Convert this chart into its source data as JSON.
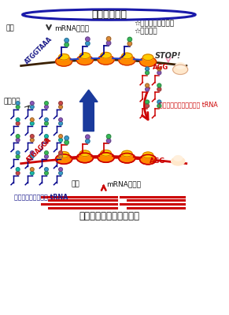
{
  "title_top": "ゲノム遺伝子",
  "title_bottom": "人工低頻度コドン遺伝子",
  "label_transcription1": "転写",
  "label_mrna1": "mRNAの合成",
  "label_transcription2": "転写",
  "label_mrna2": "mRNAの合成",
  "label_amino": "アミノ酸",
  "label_large_trna": "大量の通常コドン用 tRNA",
  "label_small_trna": "わずかな低頻度コドン用 tRNA",
  "label_stop": "STOP!",
  "label_atg1": "ATGGTAAA",
  "label_agg1": "AGG",
  "label_atg2": "ATGAGGA",
  "label_agg2": "AGG",
  "label_effect1": "☆蛋白質合成の阻害",
  "label_effect2": "☆生育抑制",
  "bg_color": "#ffffff",
  "dark_blue": "#1a1aaa",
  "red": "#cc0000",
  "pink_arrow": "#ff99bb",
  "colors_amino": [
    "#33bb55",
    "#3399cc",
    "#8855bb",
    "#dd8833",
    "#cc4444",
    "#11bbaa"
  ]
}
